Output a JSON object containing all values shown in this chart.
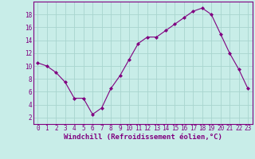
{
  "x": [
    0,
    1,
    2,
    3,
    4,
    5,
    6,
    7,
    8,
    9,
    10,
    11,
    12,
    13,
    14,
    15,
    16,
    17,
    18,
    19,
    20,
    21,
    22,
    23
  ],
  "y": [
    10.5,
    10.0,
    9.0,
    7.5,
    5.0,
    5.0,
    2.5,
    3.5,
    6.5,
    8.5,
    11.0,
    13.5,
    14.5,
    14.5,
    15.5,
    16.5,
    17.5,
    18.5,
    19.0,
    18.0,
    15.0,
    12.0,
    9.5,
    6.5
  ],
  "line_color": "#800080",
  "marker": "D",
  "marker_size": 2,
  "bg_color": "#c8ede8",
  "grid_color": "#a8d5ce",
  "xlabel": "Windchill (Refroidissement éolien,°C)",
  "xlabel_color": "#800080",
  "ylabel_ticks": [
    2,
    4,
    6,
    8,
    10,
    12,
    14,
    16,
    18
  ],
  "xtick_labels": [
    "0",
    "1",
    "2",
    "3",
    "4",
    "5",
    "6",
    "7",
    "8",
    "9",
    "10",
    "11",
    "12",
    "13",
    "14",
    "15",
    "16",
    "17",
    "18",
    "19",
    "20",
    "21",
    "22",
    "23"
  ],
  "ylim": [
    1,
    20
  ],
  "xlim": [
    -0.5,
    23.5
  ],
  "tick_color": "#800080",
  "tick_fontsize": 5.5,
  "xlabel_fontsize": 6.5,
  "spine_color": "#800080",
  "linewidth": 0.8
}
